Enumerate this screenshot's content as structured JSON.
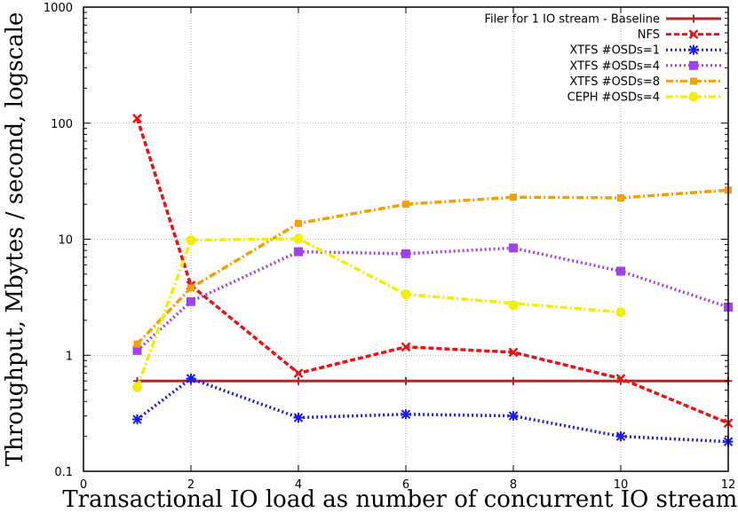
{
  "chart_data": {
    "type": "line",
    "title": "",
    "xlabel": "Transactional IO load as number of concurrent IO streams",
    "ylabel": "Throughput, Mbytes / second, logscale",
    "x_scale": "linear",
    "y_scale": "log",
    "xlim": [
      0,
      12
    ],
    "ylim": [
      0.1,
      1000
    ],
    "x_ticks": [
      0,
      2,
      4,
      6,
      8,
      10,
      12
    ],
    "x_tick_labels": [
      "0",
      "2",
      "4",
      "6",
      "8",
      "10",
      "12"
    ],
    "y_ticks": [
      0.1,
      1,
      10,
      100,
      1000
    ],
    "y_tick_labels": [
      "0.1",
      "1",
      "10",
      "100",
      "1000"
    ],
    "grid": true,
    "legend_position": "top-right",
    "series": [
      {
        "name": "Filer for 1 IO stream - Baseline",
        "color": "#a52a2a",
        "dash": "solid",
        "marker": "plus",
        "x": [
          1,
          2,
          4,
          6,
          8,
          10,
          12
        ],
        "y": [
          0.6,
          0.6,
          0.6,
          0.6,
          0.6,
          0.6,
          0.6
        ]
      },
      {
        "name": "NFS",
        "color": "#ee1111",
        "dash": "dashed",
        "marker": "x",
        "x": [
          1,
          2,
          4,
          6,
          8,
          10,
          12
        ],
        "y": [
          110,
          4,
          0.7,
          1.18,
          1.06,
          0.63,
          0.26
        ]
      },
      {
        "name": "XTFS #OSDs=1",
        "color": "#1a1aee",
        "dash": "dotted",
        "marker": "star",
        "x": [
          1,
          2,
          4,
          6,
          8,
          10,
          12
        ],
        "y": [
          0.28,
          0.63,
          0.29,
          0.31,
          0.3,
          0.2,
          0.18
        ]
      },
      {
        "name": "XTFS #OSDs=4",
        "color": "#a040f0",
        "dash": "dotted",
        "marker": "square",
        "x": [
          1,
          2,
          4,
          6,
          8,
          10,
          12
        ],
        "y": [
          1.1,
          2.9,
          7.8,
          7.5,
          8.4,
          5.3,
          2.6
        ]
      },
      {
        "name": "XTFS #OSDs=8",
        "color": "#f5a000",
        "dash": "dashdot",
        "marker": "square-small",
        "x": [
          1,
          2,
          4,
          6,
          8,
          10,
          12
        ],
        "y": [
          1.25,
          3.8,
          13.7,
          20,
          23,
          22.7,
          26.5
        ]
      },
      {
        "name": "CEPH #OSDs=4",
        "color": "#f0f000",
        "dash": "dashdot",
        "marker": "circle",
        "x": [
          1,
          2,
          4,
          6,
          10
        ],
        "y": [
          0.53,
          9.8,
          10.1,
          3.35,
          2.35
        ]
      }
    ],
    "extra_points": [
      {
        "series": "CEPH #OSDs=4",
        "x": 8,
        "y": 2.7
      }
    ]
  }
}
